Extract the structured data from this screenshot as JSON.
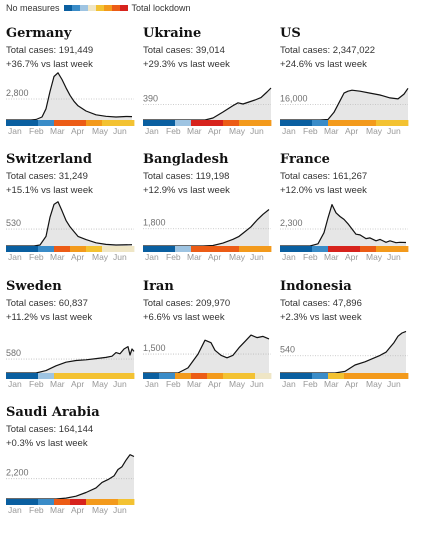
{
  "legend": {
    "start_label": "No measures",
    "end_label": "Total lockdown",
    "scale_colors": [
      "#0a5fa0",
      "#3a8cc8",
      "#9ec4e2",
      "#efe6c6",
      "#f3c232",
      "#f39a1c",
      "#ec5c16",
      "#d7231d"
    ]
  },
  "chart_data": [
    {
      "type": "area",
      "title": "Germany",
      "cases_label": "Total cases: 191,449",
      "change_label": "+36.7% vs last week",
      "ref_value": 2800,
      "ref_label": "2,800",
      "ylim": [
        0,
        6400
      ],
      "x_labels": [
        "Jan",
        "Feb",
        "Mar",
        "Apr",
        "May",
        "Jun"
      ],
      "x": [
        0,
        25,
        30,
        36,
        40,
        44,
        48,
        52,
        56,
        60,
        64,
        68,
        72,
        80,
        90,
        100,
        110,
        120,
        126
      ],
      "values": [
        0,
        0,
        60,
        400,
        1500,
        3800,
        5800,
        6300,
        5400,
        4300,
        3300,
        2500,
        1900,
        1200,
        700,
        500,
        400,
        460,
        450
      ],
      "stringency": [
        "#0a5fa0",
        "#0a5fa0",
        "#3a8cc8",
        "#ec5c16",
        "#ec5c16",
        "#f39a1c",
        "#f3c232",
        "#f3c232"
      ]
    },
    {
      "type": "area",
      "title": "Ukraine",
      "cases_label": "Total cases: 39,014",
      "change_label": "+29.3% vs last week",
      "ref_value": 390,
      "ref_label": "390",
      "ylim": [
        0,
        1200
      ],
      "x_labels": [
        "Jan",
        "Feb",
        "Mar",
        "Apr",
        "May",
        "Jun"
      ],
      "x": [
        0,
        62,
        70,
        80,
        90,
        95,
        100,
        106,
        112,
        118,
        124,
        128
      ],
      "values": [
        0,
        0,
        50,
        200,
        360,
        430,
        400,
        450,
        500,
        560,
        700,
        800
      ],
      "stringency": [
        "#0a5fa0",
        "#0a5fa0",
        "#9ec4e2",
        "#d7231d",
        "#d7231d",
        "#ec5c16",
        "#f39a1c",
        "#f39a1c"
      ]
    },
    {
      "type": "area",
      "title": "US",
      "cases_label": "Total cases: 2,347,022",
      "change_label": "+24.6% vs last week",
      "ref_value": 16000,
      "ref_label": "16,000",
      "ylim": [
        0,
        50000
      ],
      "x_labels": [
        "Jan",
        "Feb",
        "Mar",
        "Apr",
        "May",
        "Jun"
      ],
      "x": [
        0,
        40,
        48,
        54,
        60,
        64,
        68,
        72,
        80,
        90,
        100,
        110,
        118,
        124,
        128
      ],
      "values": [
        0,
        0,
        500,
        8000,
        20000,
        28000,
        30000,
        31000,
        30000,
        28000,
        26000,
        23000,
        22000,
        27000,
        33000
      ],
      "stringency": [
        "#0a5fa0",
        "#0a5fa0",
        "#3a8cc8",
        "#f39a1c",
        "#f39a1c",
        "#f39a1c",
        "#f3c232",
        "#f3c232"
      ]
    },
    {
      "type": "area",
      "title": "Switzerland",
      "cases_label": "Total cases: 31,249",
      "change_label": "+15.1% vs last week",
      "ref_value": 530,
      "ref_label": "530",
      "ylim": [
        0,
        1500
      ],
      "x_labels": [
        "Jan",
        "Feb",
        "Mar",
        "Apr",
        "May",
        "Jun"
      ],
      "x": [
        0,
        28,
        34,
        40,
        44,
        48,
        52,
        56,
        60,
        64,
        68,
        72,
        80,
        90,
        100,
        110,
        126
      ],
      "values": [
        0,
        0,
        30,
        300,
        900,
        1300,
        1380,
        1100,
        800,
        600,
        450,
        300,
        200,
        100,
        50,
        30,
        40
      ],
      "stringency": [
        "#0a5fa0",
        "#0a5fa0",
        "#3a8cc8",
        "#ec5c16",
        "#f39a1c",
        "#f3c232",
        "#efe6c6",
        "#efe6c6"
      ]
    },
    {
      "type": "area",
      "title": "Bangladesh",
      "cases_label": "Total cases: 119,198",
      "change_label": "+12.9% vs last week",
      "ref_value": 1800,
      "ref_label": "1,800",
      "ylim": [
        0,
        5000
      ],
      "x_labels": [
        "Jan",
        "Feb",
        "Mar",
        "Apr",
        "May",
        "Jun"
      ],
      "x": [
        0,
        60,
        70,
        80,
        90,
        96,
        102,
        108,
        114,
        120,
        126
      ],
      "values": [
        0,
        0,
        50,
        300,
        700,
        1000,
        1500,
        2000,
        2700,
        3300,
        3800
      ],
      "stringency": [
        "#0a5fa0",
        "#0a5fa0",
        "#9ec4e2",
        "#ec5c16",
        "#ec5c16",
        "#ec5c16",
        "#f39a1c",
        "#f39a1c"
      ]
    },
    {
      "type": "area",
      "title": "France",
      "cases_label": "Total cases: 161,267",
      "change_label": "+12.0% vs last week",
      "ref_value": 2300,
      "ref_label": "2,300",
      "ylim": [
        0,
        6500
      ],
      "x_labels": [
        "Jan",
        "Feb",
        "Mar",
        "Apr",
        "May",
        "Jun"
      ],
      "x": [
        0,
        30,
        38,
        44,
        48,
        52,
        56,
        60,
        64,
        68,
        72,
        76,
        80,
        86,
        90,
        96,
        100,
        106,
        110,
        116,
        120,
        126
      ],
      "values": [
        0,
        0,
        300,
        1800,
        3800,
        5600,
        4500,
        4000,
        3600,
        3000,
        2300,
        1600,
        1500,
        1000,
        1100,
        700,
        900,
        500,
        700,
        450,
        500,
        480
      ],
      "stringency": [
        "#0a5fa0",
        "#0a5fa0",
        "#3a8cc8",
        "#d7231d",
        "#d7231d",
        "#ec5c16",
        "#f39a1c",
        "#f39a1c"
      ]
    },
    {
      "type": "area",
      "title": "Sweden",
      "cases_label": "Total cases: 60,837",
      "change_label": "+11.2% vs last week",
      "ref_value": 580,
      "ref_label": "580",
      "ylim": [
        0,
        2000
      ],
      "x_labels": [
        "Jan",
        "Feb",
        "Mar",
        "Apr",
        "May",
        "Jun"
      ],
      "x": [
        0,
        30,
        40,
        50,
        60,
        70,
        80,
        90,
        100,
        106,
        110,
        114,
        118,
        122,
        124,
        126,
        128
      ],
      "values": [
        0,
        0,
        100,
        300,
        450,
        520,
        550,
        600,
        650,
        700,
        850,
        800,
        1000,
        1100,
        750,
        1000,
        900
      ],
      "stringency": [
        "#0a5fa0",
        "#0a5fa0",
        "#9ec4e2",
        "#f3c232",
        "#f3c232",
        "#f3c232",
        "#f3c232",
        "#f3c232"
      ]
    },
    {
      "type": "area",
      "title": "Iran",
      "cases_label": "Total cases: 209,970",
      "change_label": "+6.6% vs last week",
      "ref_value": 1500,
      "ref_label": "1,500",
      "ylim": [
        0,
        3800
      ],
      "x_labels": [
        "Jan",
        "Feb",
        "Mar",
        "Apr",
        "May",
        "Jun"
      ],
      "x": [
        0,
        35,
        45,
        55,
        62,
        68,
        72,
        78,
        84,
        90,
        96,
        102,
        108,
        114,
        120,
        126
      ],
      "values": [
        0,
        0,
        400,
        1500,
        2600,
        2400,
        1800,
        1400,
        1200,
        1400,
        2000,
        2500,
        3000,
        2800,
        2900,
        2700
      ],
      "stringency": [
        "#0a5fa0",
        "#3a8cc8",
        "#f39a1c",
        "#ec5c16",
        "#f39a1c",
        "#f3c232",
        "#f3c232",
        "#efe6c6"
      ]
    },
    {
      "type": "area",
      "title": "Indonesia",
      "cases_label": "Total cases: 47,896",
      "change_label": "+2.3% vs last week",
      "ref_value": 540,
      "ref_label": "540",
      "ylim": [
        0,
        1500
      ],
      "x_labels": [
        "Jan",
        "Feb",
        "Mar",
        "Apr",
        "May",
        "Jun"
      ],
      "x": [
        0,
        55,
        65,
        75,
        85,
        95,
        100,
        106,
        110,
        114,
        118,
        122,
        126
      ],
      "values": [
        0,
        0,
        50,
        250,
        350,
        480,
        550,
        650,
        800,
        950,
        1150,
        1250,
        1300
      ],
      "stringency": [
        "#0a5fa0",
        "#0a5fa0",
        "#3a8cc8",
        "#f3c232",
        "#f39a1c",
        "#f39a1c",
        "#f39a1c",
        "#f39a1c"
      ]
    },
    {
      "type": "area",
      "title": "Saudi Arabia",
      "cases_label": "Total cases: 164,144",
      "change_label": "+0.3% vs last week",
      "ref_value": 2200,
      "ref_label": "2,200",
      "ylim": [
        0,
        5200
      ],
      "x_labels": [
        "Jan",
        "Feb",
        "Mar",
        "Apr",
        "May",
        "Jun"
      ],
      "x": [
        0,
        50,
        60,
        70,
        80,
        90,
        96,
        102,
        108,
        112,
        116,
        120,
        124,
        128
      ],
      "values": [
        0,
        0,
        100,
        300,
        700,
        1200,
        1800,
        2100,
        2500,
        3200,
        3500,
        4200,
        4800,
        4600
      ],
      "stringency": [
        "#0a5fa0",
        "#0a5fa0",
        "#3a8cc8",
        "#ec5c16",
        "#d7231d",
        "#f39a1c",
        "#f39a1c",
        "#f3c232"
      ]
    }
  ]
}
